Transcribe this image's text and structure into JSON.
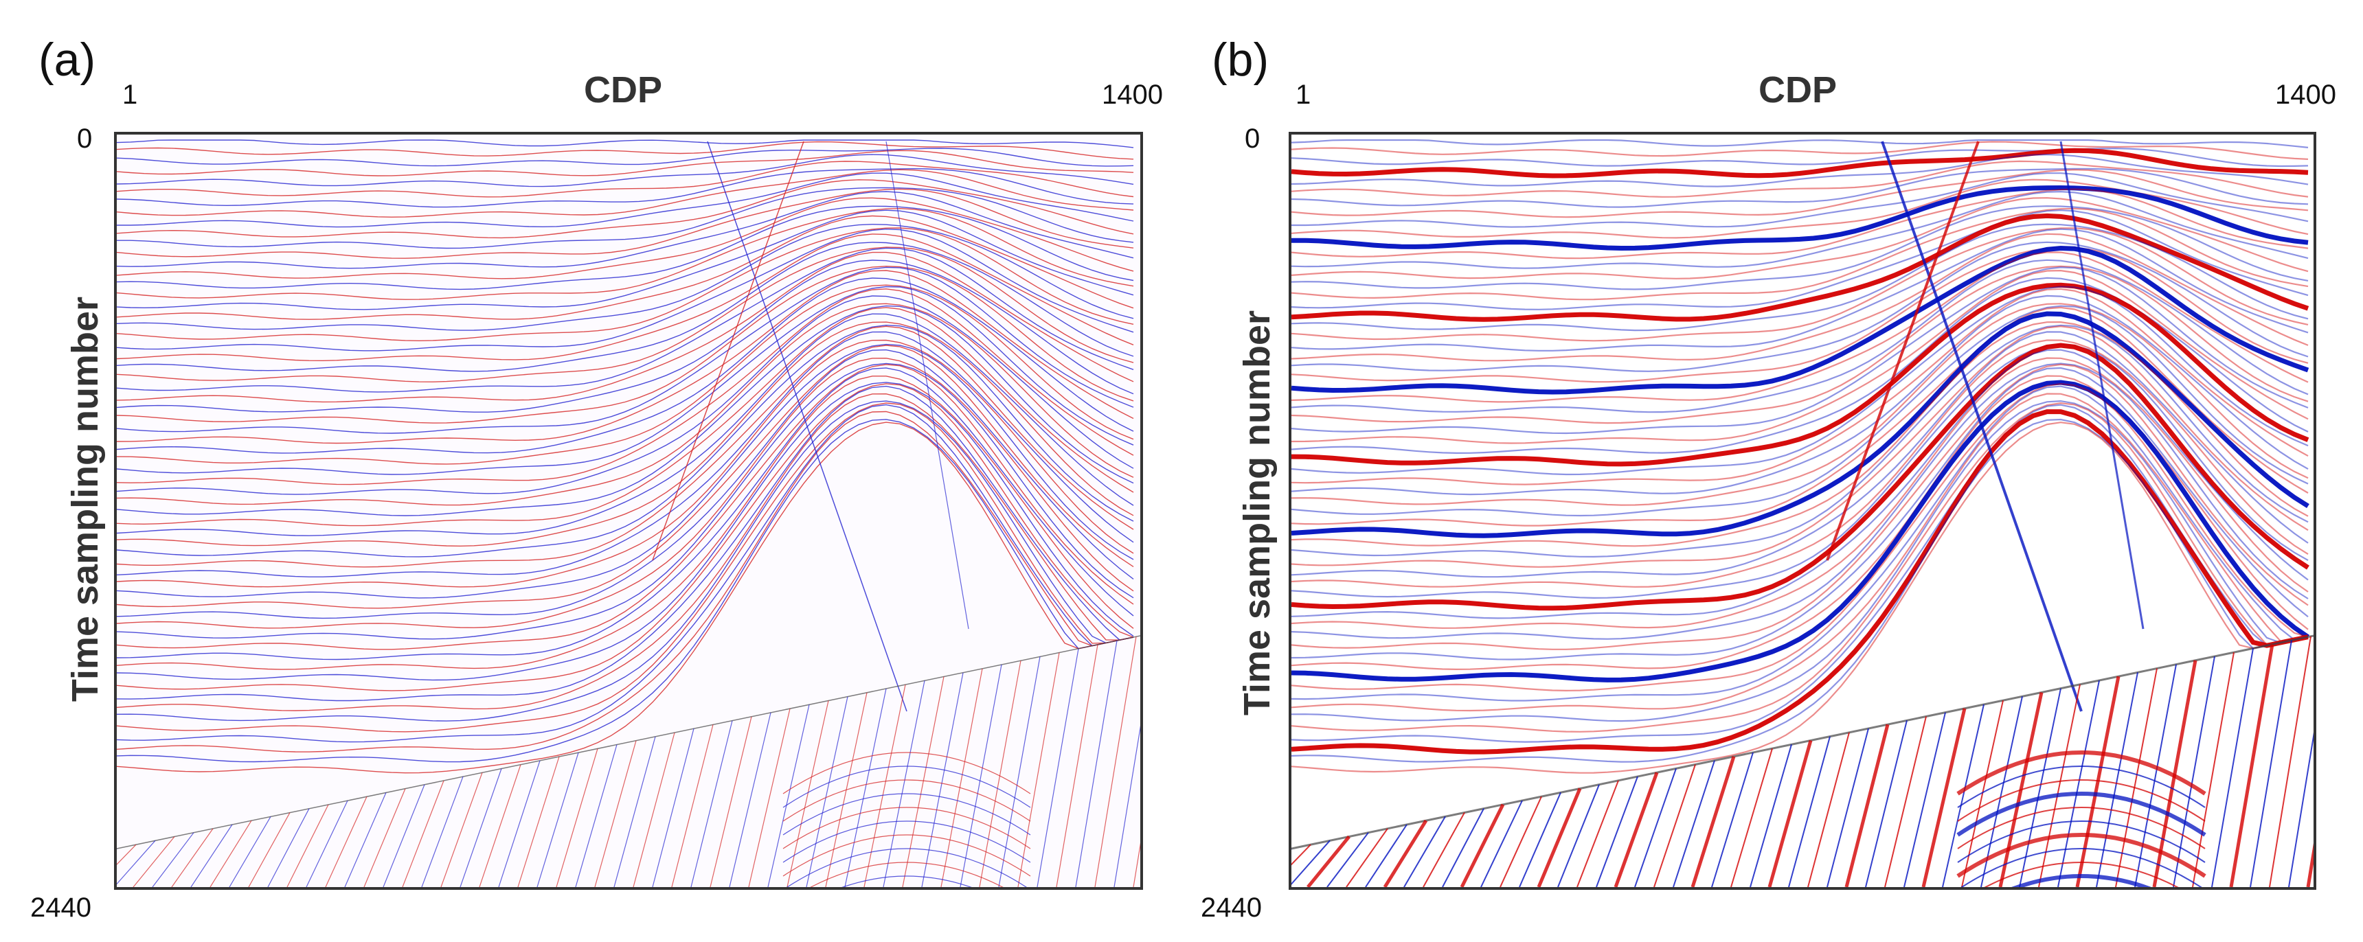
{
  "panels": [
    {
      "letter": "(a)",
      "x_axis_title": "CDP",
      "x_tick_start": "1",
      "x_tick_end": "1400",
      "y_tick_top": "0",
      "y_tick_bottom": "2440",
      "y_axis_title": "Time sampling number",
      "style": "thin-traces",
      "colors": {
        "positive": "#d42020",
        "negative": "#2020d0",
        "background": "#fdfbff"
      }
    },
    {
      "letter": "(b)",
      "x_axis_title": "CDP",
      "x_tick_start": "1",
      "x_tick_end": "1400",
      "y_tick_top": "0",
      "y_tick_bottom": "2440",
      "y_axis_title": "Time sampling number",
      "style": "wiggle-bands",
      "colors": {
        "positive": "#d40000",
        "negative": "#0010c0",
        "background": "#ffffff"
      }
    }
  ]
}
